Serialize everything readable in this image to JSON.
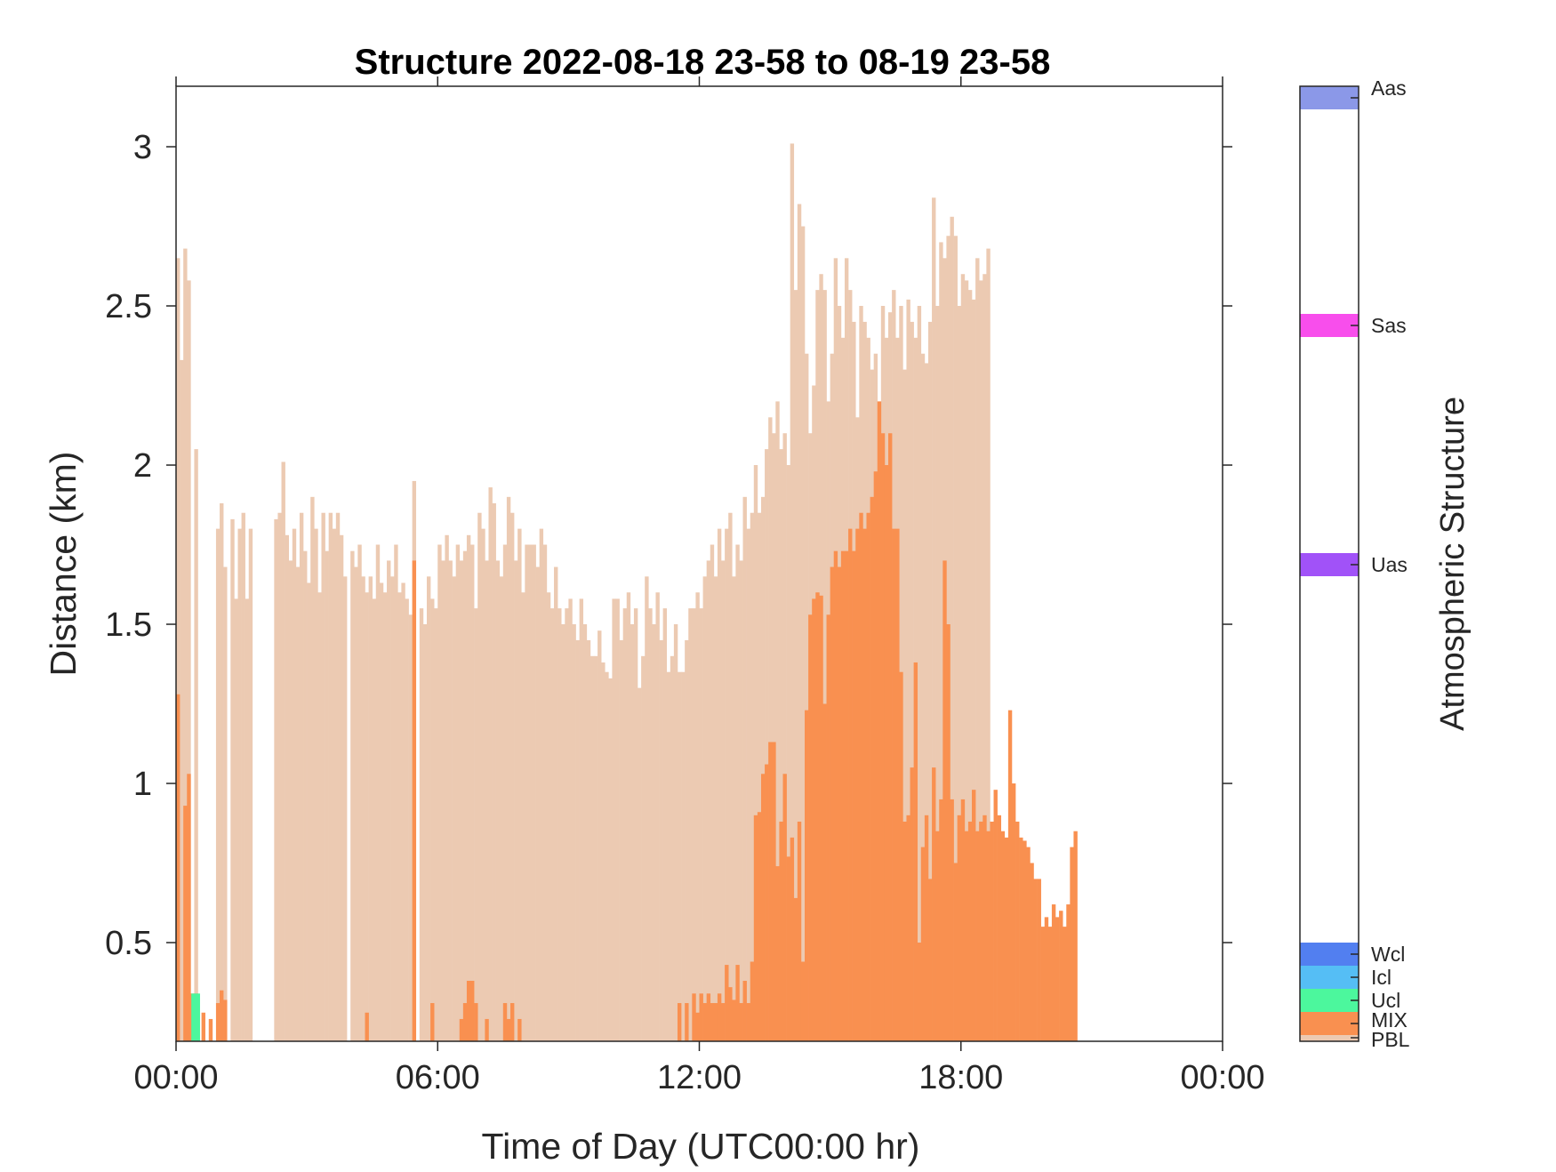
{
  "colors": {
    "PBL": "#ECCAB2",
    "MIX": "#F99050",
    "Ucl": "#4CF79D",
    "Icl": "#55BEF5",
    "Wcl": "#527FF0",
    "Uas": "#A152F8",
    "Sas": "#F84EEC",
    "Aas": "#8B98E8"
  },
  "chart_data": {
    "type": "bar",
    "title": "Structure 2022-08-18 23-58 to 08-19 23-58",
    "xlabel": "Time of Day (UTC00:00 hr)",
    "ylabel": "Distance (km)",
    "xlim": [
      0,
      24
    ],
    "ylim": [
      0.19,
      3.19
    ],
    "xticks": [
      0,
      6,
      12,
      18,
      24
    ],
    "xtick_labels": [
      "00:00",
      "06:00",
      "12:00",
      "18:00",
      "00:00"
    ],
    "yticks": [
      0.5,
      1,
      1.5,
      2,
      2.5,
      3
    ],
    "ytick_labels": [
      "0.5",
      "1",
      "1.5",
      "2",
      "2.5",
      "3"
    ],
    "grid": false,
    "bin_minutes": 5,
    "bar_start_hour": 0,
    "series": [
      {
        "name": "PBL",
        "values": [
          2.65,
          2.33,
          2.68,
          2.58,
          0.19,
          2.05,
          0.19,
          0.19,
          0.19,
          0.19,
          0.19,
          1.8,
          1.88,
          1.68,
          0.19,
          1.83,
          1.58,
          1.8,
          1.85,
          1.58,
          1.8,
          0.19,
          0.19,
          0.19,
          0.19,
          0.19,
          0.19,
          1.83,
          1.85,
          2.01,
          1.78,
          1.7,
          1.8,
          1.68,
          1.85,
          1.73,
          1.63,
          1.9,
          1.8,
          1.6,
          1.85,
          1.73,
          1.85,
          1.8,
          1.85,
          1.78,
          1.65,
          0.19,
          1.73,
          1.68,
          1.75,
          1.65,
          1.6,
          1.65,
          1.58,
          1.75,
          1.63,
          1.6,
          1.7,
          1.65,
          1.75,
          1.6,
          1.63,
          1.58,
          1.53,
          1.95,
          0.19,
          1.55,
          1.5,
          1.65,
          1.58,
          1.55,
          1.75,
          1.7,
          1.78,
          1.7,
          1.65,
          1.75,
          1.7,
          1.73,
          1.78,
          1.75,
          1.55,
          1.85,
          1.8,
          1.7,
          1.93,
          1.88,
          1.7,
          1.65,
          1.75,
          1.9,
          1.85,
          1.7,
          1.8,
          1.6,
          1.75,
          1.75,
          1.75,
          1.68,
          1.8,
          1.75,
          1.6,
          1.55,
          1.68,
          1.55,
          1.5,
          1.55,
          1.58,
          1.5,
          1.45,
          1.58,
          1.5,
          1.45,
          1.4,
          1.4,
          1.48,
          1.38,
          1.35,
          1.33,
          1.58,
          1.58,
          1.45,
          1.55,
          1.6,
          1.5,
          1.55,
          1.3,
          1.4,
          1.65,
          1.55,
          1.5,
          1.6,
          1.45,
          1.55,
          1.35,
          1.4,
          1.5,
          1.35,
          1.35,
          1.45,
          1.55,
          1.55,
          1.6,
          1.55,
          1.65,
          1.7,
          1.75,
          1.65,
          1.8,
          1.7,
          1.8,
          1.85,
          1.65,
          1.75,
          1.7,
          1.9,
          1.8,
          1.85,
          2.0,
          1.85,
          1.9,
          2.05,
          2.15,
          2.1,
          2.2,
          2.05,
          2.1,
          2.0,
          3.01,
          2.55,
          2.82,
          2.75,
          2.35,
          2.1,
          2.25,
          2.55,
          2.6,
          2.55,
          2.2,
          2.35,
          2.65,
          2.5,
          2.4,
          2.65,
          2.55,
          2.45,
          2.15,
          2.5,
          2.45,
          2.4,
          2.3,
          2.35,
          2.2,
          2.5,
          2.4,
          2.48,
          2.55,
          2.4,
          2.5,
          2.3,
          2.52,
          2.45,
          2.4,
          2.5,
          2.35,
          2.32,
          2.45,
          2.84,
          2.5,
          2.7,
          2.65,
          2.72,
          2.78,
          2.72,
          2.5,
          2.6,
          2.58,
          2.55,
          2.52,
          2.65,
          2.58,
          2.6,
          2.68
        ]
      },
      {
        "name": "MIX",
        "values": [
          1.28,
          0.19,
          0.93,
          1.03,
          0.34,
          0.34,
          0.19,
          0.28,
          0.19,
          0.26,
          0.19,
          0.31,
          0.35,
          0.32,
          0.19,
          0.19,
          0.19,
          0.19,
          0.19,
          0.19,
          0.19,
          0.19,
          0.19,
          0.19,
          0.19,
          0.19,
          0.19,
          0.19,
          0.19,
          0.19,
          0.19,
          0.19,
          0.19,
          0.19,
          0.19,
          0.19,
          0.19,
          0.19,
          0.19,
          0.19,
          0.19,
          0.19,
          0.19,
          0.19,
          0.19,
          0.19,
          0.19,
          0.19,
          0.19,
          0.19,
          0.19,
          0.19,
          0.28,
          0.19,
          0.19,
          0.19,
          0.19,
          0.19,
          0.19,
          0.19,
          0.19,
          0.19,
          0.19,
          0.19,
          0.19,
          1.7,
          0.19,
          0.19,
          0.19,
          0.19,
          0.31,
          0.19,
          0.19,
          0.19,
          0.19,
          0.19,
          0.19,
          0.19,
          0.26,
          0.31,
          0.38,
          0.38,
          0.31,
          0.19,
          0.19,
          0.26,
          0.19,
          0.19,
          0.19,
          0.19,
          0.31,
          0.26,
          0.31,
          0.19,
          0.26,
          0.19,
          0.19,
          0.19,
          0.19,
          0.19,
          0.19,
          0.19,
          0.19,
          0.19,
          0.19,
          0.19,
          0.19,
          0.19,
          0.19,
          0.19,
          0.19,
          0.19,
          0.19,
          0.19,
          0.19,
          0.19,
          0.19,
          0.19,
          0.19,
          0.19,
          0.19,
          0.19,
          0.19,
          0.19,
          0.19,
          0.19,
          0.19,
          0.19,
          0.19,
          0.19,
          0.19,
          0.19,
          0.19,
          0.19,
          0.19,
          0.19,
          0.19,
          0.19,
          0.31,
          0.19,
          0.31,
          0.19,
          0.34,
          0.28,
          0.34,
          0.31,
          0.34,
          0.31,
          0.31,
          0.34,
          0.31,
          0.43,
          0.36,
          0.32,
          0.43,
          0.31,
          0.38,
          0.31,
          0.44,
          0.9,
          0.91,
          1.03,
          1.06,
          1.13,
          1.13,
          0.74,
          0.88,
          1.03,
          0.77,
          0.83,
          0.64,
          0.88,
          0.44,
          1.23,
          1.53,
          1.58,
          1.6,
          1.59,
          1.25,
          1.53,
          1.68,
          1.73,
          1.68,
          1.73,
          1.73,
          1.8,
          1.73,
          1.8,
          1.85,
          1.8,
          1.85,
          1.9,
          1.98,
          2.2,
          2.1,
          2.0,
          2.1,
          1.8,
          1.8,
          1.35,
          0.88,
          0.9,
          1.05,
          1.38,
          0.5,
          0.8,
          0.9,
          0.7,
          1.05,
          0.85,
          0.95,
          1.7,
          1.5,
          0.95,
          0.75,
          0.9,
          0.95,
          0.85,
          0.88,
          0.98,
          0.85,
          0.88,
          0.9,
          0.85,
          0.88,
          0.98,
          0.9,
          0.85,
          0.83,
          1.23,
          1.0,
          0.88,
          0.83,
          0.82,
          0.8,
          0.75,
          0.7,
          0.7,
          0.55,
          0.58,
          0.55,
          0.62,
          0.58,
          0.6,
          0.55,
          0.62,
          0.8,
          0.85
        ]
      }
    ],
    "cloud_marks": [
      {
        "name": "Ucl",
        "start_hour": 0.35,
        "end_hour": 0.55,
        "bottom": 0.19,
        "top": 0.34
      }
    ],
    "colorbar": {
      "label": "Atmospheric Structure",
      "categories": [
        "PBL",
        "MIX",
        "Ucl",
        "Icl",
        "Wcl",
        "Uas",
        "Sas",
        "Aas"
      ]
    }
  }
}
